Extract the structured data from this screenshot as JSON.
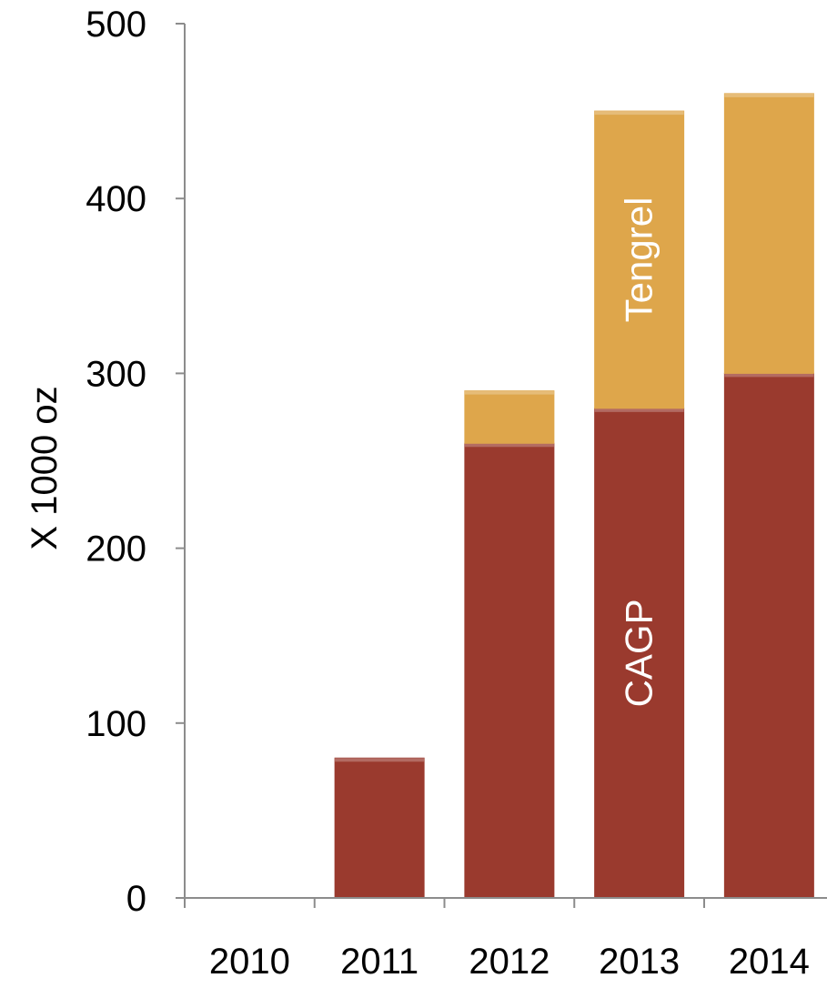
{
  "chart_data": {
    "type": "bar",
    "stacked": true,
    "title": "",
    "xlabel": "",
    "ylabel": "X 1000 oz",
    "categories": [
      "2010",
      "2011",
      "2012",
      "2013",
      "2014"
    ],
    "series": [
      {
        "name": "CAGP",
        "values": [
          0,
          80,
          260,
          280,
          300
        ],
        "color": "#9a3a2e"
      },
      {
        "name": "Tengrel",
        "values": [
          0,
          0,
          30,
          170,
          160
        ],
        "color": "#dea64b"
      }
    ],
    "ylim": [
      0,
      500
    ],
    "yticks": [
      0,
      100,
      200,
      300,
      400,
      500
    ],
    "grid": false,
    "legend": "none",
    "in_bar_labels": [
      {
        "series": "Tengrel",
        "category": "2013",
        "text": "Tengrel"
      },
      {
        "series": "CAGP",
        "category": "2013",
        "text": "CAGP"
      }
    ]
  }
}
